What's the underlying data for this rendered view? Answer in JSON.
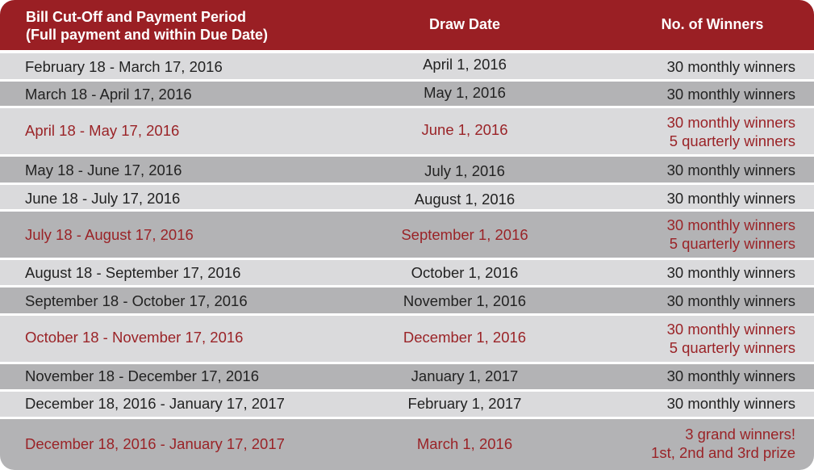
{
  "header": {
    "col1_line1": "Bill Cut-Off and Payment Period",
    "col1_line2": "(Full payment and within Due Date)",
    "col2": "Draw Date",
    "col3": "No. of Winners"
  },
  "rows": [
    {
      "period": "February 18 - March 17, 2016",
      "draw": "April 1, 2016",
      "winners": [
        "30 monthly winners"
      ]
    },
    {
      "period": "March 18 - April 17, 2016",
      "draw": "May 1, 2016",
      "winners": [
        "30 monthly winners"
      ]
    },
    {
      "period": "April 18 - May 17, 2016",
      "draw": "June 1, 2016",
      "winners": [
        "30 monthly winners",
        "5 quarterly winners"
      ]
    },
    {
      "period": "May 18 - June 17, 2016",
      "draw": "July 1, 2016",
      "winners": [
        "30 monthly winners"
      ]
    },
    {
      "period": "June 18 - July 17, 2016",
      "draw": "August 1, 2016",
      "winners": [
        "30 monthly winners"
      ]
    },
    {
      "period": "July 18 - August 17, 2016",
      "draw": "September 1, 2016",
      "winners": [
        "30 monthly winners",
        "5 quarterly winners"
      ]
    },
    {
      "period": "August 18 - September 17, 2016",
      "draw": "October 1, 2016",
      "winners": [
        "30 monthly winners"
      ]
    },
    {
      "period": "September 18 - October 17, 2016",
      "draw": "November 1, 2016",
      "winners": [
        "30 monthly winners"
      ]
    },
    {
      "period": "October 18 - November 17, 2016",
      "draw": "December 1, 2016",
      "winners": [
        "30 monthly winners",
        "5 quarterly winners"
      ]
    },
    {
      "period": "November 18 - December 17, 2016",
      "draw": "January 1, 2017",
      "winners": [
        "30 monthly winners"
      ]
    },
    {
      "period": "December 18, 2016 - January 17, 2017",
      "draw": "February 1, 2017",
      "winners": [
        "30 monthly winners"
      ]
    },
    {
      "period": "December 18, 2016 - January 17, 2017",
      "draw": "March 1, 2016",
      "winners": [
        "3 grand winners!",
        "1st, 2nd and 3rd prize"
      ]
    }
  ],
  "colors": {
    "header_bg": "#9a1f24",
    "highlight_text": "#9a2327",
    "row_light": "#dadadc",
    "row_dark": "#b3b3b5"
  }
}
